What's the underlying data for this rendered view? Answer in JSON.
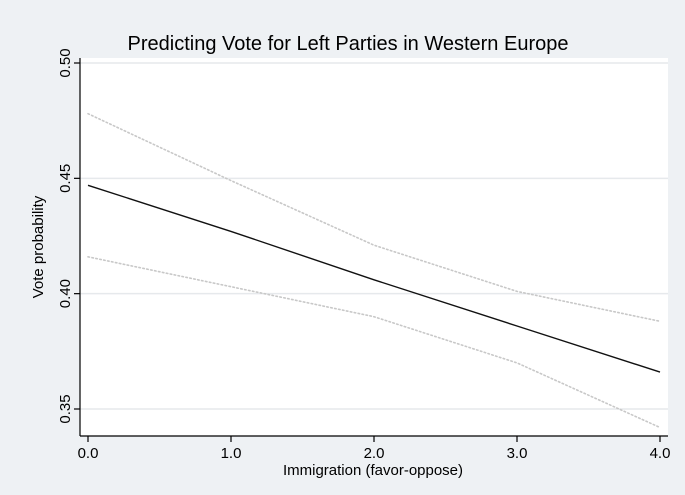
{
  "chart_data": {
    "type": "line",
    "title": "Predicting Vote for Left Parties in Western Europe",
    "xlabel": "Immigration (favor-oppose)",
    "ylabel": "Vote probability",
    "xlim": [
      0.0,
      4.0
    ],
    "ylim": [
      0.35,
      0.5
    ],
    "x_ticks": [
      "0.0",
      "1.0",
      "2.0",
      "3.0",
      "4.0"
    ],
    "y_ticks": [
      "0.35",
      "0.40",
      "0.45",
      "0.50"
    ],
    "grid": true,
    "legend": "none",
    "series": [
      {
        "role": "estimate",
        "style": "solid",
        "color": "#111111",
        "x": [
          0.0,
          1.0,
          2.0,
          3.0,
          4.0
        ],
        "y": [
          0.447,
          0.427,
          0.406,
          0.386,
          0.366
        ]
      },
      {
        "role": "upper-confidence-bound",
        "style": "dotted",
        "color": "#c8c8c8",
        "x": [
          0.0,
          1.0,
          2.0,
          3.0,
          4.0
        ],
        "y": [
          0.478,
          0.449,
          0.421,
          0.401,
          0.388
        ]
      },
      {
        "role": "lower-confidence-bound",
        "style": "dotted",
        "color": "#c8c8c8",
        "x": [
          0.0,
          1.0,
          2.0,
          3.0,
          4.0
        ],
        "y": [
          0.416,
          0.403,
          0.39,
          0.37,
          0.342
        ]
      }
    ]
  },
  "colors": {
    "outer_background": "#eef1f4",
    "plot_background": "#ffffff",
    "grid": "#e6e9ec",
    "axis": "#000000"
  }
}
